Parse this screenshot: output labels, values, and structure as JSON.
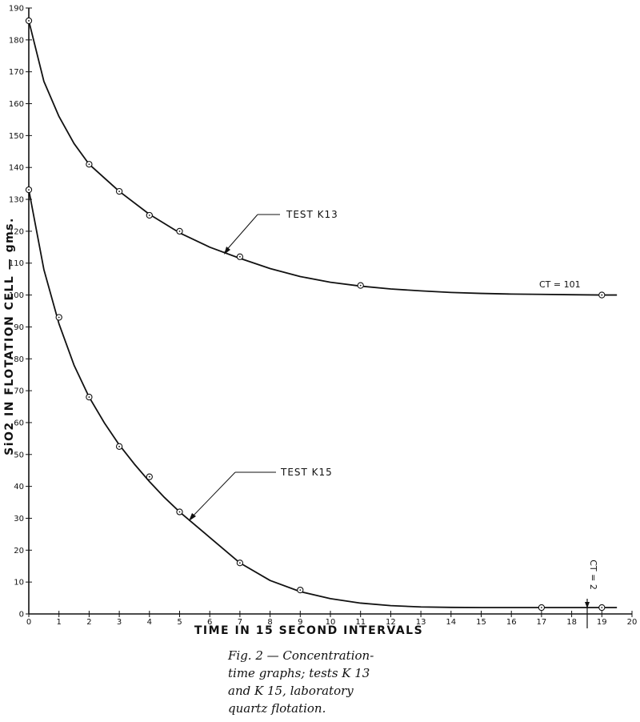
{
  "caption": {
    "lines": [
      "Fig. 2 — Concentration-",
      "time graphs; tests K 13",
      "and K 15, laboratory",
      "quartz flotation."
    ]
  },
  "chart_data": {
    "type": "line",
    "xlabel": "TIME IN 15 SECOND INTERVALS",
    "ylabel": "SiO2 IN FLOTATION CELL — gms.",
    "xlim": [
      0,
      20
    ],
    "ylim": [
      0,
      190
    ],
    "xticks": [
      0,
      1,
      2,
      3,
      4,
      5,
      6,
      7,
      8,
      9,
      10,
      11,
      12,
      13,
      14,
      15,
      16,
      17,
      18,
      19,
      20
    ],
    "yticks": [
      0,
      10,
      20,
      30,
      40,
      50,
      60,
      70,
      80,
      90,
      100,
      110,
      120,
      130,
      140,
      150,
      160,
      170,
      180,
      190
    ],
    "grid": false,
    "series": [
      {
        "name": "TEST K13",
        "points": [
          [
            0,
            186
          ],
          [
            2,
            141
          ],
          [
            3,
            132.5
          ],
          [
            4,
            125
          ],
          [
            5,
            120
          ],
          [
            7,
            112
          ],
          [
            11,
            103
          ],
          [
            19,
            100
          ]
        ],
        "curve": [
          [
            0,
            186
          ],
          [
            0.5,
            167
          ],
          [
            1,
            156
          ],
          [
            1.5,
            147.5
          ],
          [
            2,
            141
          ],
          [
            3,
            132.5
          ],
          [
            4,
            125.3
          ],
          [
            5,
            119.5
          ],
          [
            6,
            115
          ],
          [
            7,
            111.5
          ],
          [
            8,
            108.3
          ],
          [
            9,
            105.8
          ],
          [
            10,
            104
          ],
          [
            11,
            102.8
          ],
          [
            12,
            101.9
          ],
          [
            13,
            101.3
          ],
          [
            14,
            100.8
          ],
          [
            15,
            100.5
          ],
          [
            16,
            100.3
          ],
          [
            17,
            100.2
          ],
          [
            18,
            100.1
          ],
          [
            19,
            100
          ],
          [
            19.5,
            100
          ]
        ]
      },
      {
        "name": "TEST K15",
        "points": [
          [
            0,
            133
          ],
          [
            1,
            93
          ],
          [
            2,
            68
          ],
          [
            3,
            52.5
          ],
          [
            4,
            43
          ],
          [
            5,
            32
          ],
          [
            7,
            16
          ],
          [
            9,
            7.5
          ],
          [
            17,
            2
          ],
          [
            19,
            2
          ]
        ],
        "curve": [
          [
            0,
            133
          ],
          [
            0.5,
            108
          ],
          [
            1,
            91
          ],
          [
            1.5,
            78
          ],
          [
            2,
            68
          ],
          [
            2.5,
            60
          ],
          [
            3,
            53
          ],
          [
            3.5,
            47
          ],
          [
            4,
            41.5
          ],
          [
            4.5,
            36.5
          ],
          [
            5,
            32
          ],
          [
            6,
            24
          ],
          [
            7,
            16
          ],
          [
            8,
            10.5
          ],
          [
            9,
            7
          ],
          [
            10,
            4.8
          ],
          [
            11,
            3.4
          ],
          [
            12,
            2.6
          ],
          [
            13,
            2.2
          ],
          [
            14,
            2.05
          ],
          [
            15,
            2
          ],
          [
            16,
            2
          ],
          [
            17,
            2
          ],
          [
            18,
            2
          ],
          [
            19,
            2
          ],
          [
            19.5,
            2
          ]
        ]
      }
    ],
    "annotations": [
      {
        "text": "TEST K13",
        "series": "TEST K13",
        "at_x": 6.5
      },
      {
        "text": "TEST K15",
        "series": "TEST K15",
        "at_x": 5.3
      },
      {
        "text": "CT = 101",
        "series": "TEST K13"
      },
      {
        "text": "CT = 2",
        "series": "TEST K15",
        "at_x": 18.5
      }
    ]
  }
}
